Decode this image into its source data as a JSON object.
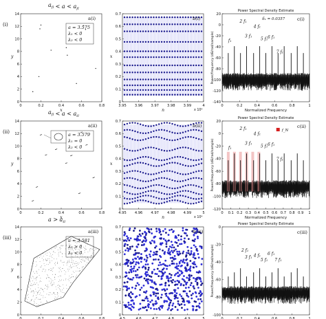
{
  "rows": [
    {
      "label": "(i)",
      "condition": {
        "pre": "a",
        "sub1": "fl",
        "mid": " < a < a",
        "sub2": "fl"
      },
      "attractor": {
        "panel": "a(i)",
        "legend": [
          "a = 3.575",
          "λ₁ < 0",
          "λ₂ < 0"
        ],
        "x_ticks": [
          "0",
          "0.2",
          "0.4",
          "0.6",
          "0.8"
        ],
        "y_ticks": [
          "0",
          "2",
          "4",
          "6",
          "8",
          "10",
          "12",
          "14"
        ],
        "xlabel": "x",
        "ylabel": "y"
      },
      "timeseries": {
        "panel": "b(i)",
        "x_ticks": [
          "3.95",
          "3.96",
          "3.97",
          "3.98",
          "3.99",
          "4"
        ],
        "y_ticks": [
          "0",
          "0.1",
          "0.2",
          "0.3",
          "0.4",
          "0.5",
          "0.6",
          "0.7"
        ],
        "xlabel": "n",
        "ylabel": "x",
        "exponent": "x 10⁴"
      },
      "psd": {
        "panel": "c(i)",
        "title": "Power Spectral Density Estimate",
        "delta": "δ₁ = 0.0357",
        "x_ticks": [
          "0",
          "0.2",
          "0.4",
          "0.6",
          "0.8",
          "1"
        ],
        "y_ticks": [
          "-140",
          "-120",
          "-100",
          "-80",
          "-60",
          "-40",
          "-20",
          "0",
          "20"
        ],
        "xlabel": "Normalized Frequency",
        "ylabel": "Power/frequency (dB/rad/sample)",
        "peak_labels": [
          "f₁",
          "2 f₁",
          "3 f₁",
          "4 f₁",
          "5 f₁",
          "6 f₁",
          "7 f₁"
        ]
      }
    },
    {
      "label": "(ii)",
      "condition": {
        "pre": "a",
        "sub1": "fl",
        "mid": " < a < a",
        "sub2": "tl"
      },
      "attractor": {
        "panel": "a(ii)",
        "legend": [
          "a = 3.579",
          "λ₁ = 0",
          "λ₂ < 0"
        ],
        "x_ticks": [
          "0",
          "0.2",
          "0.4",
          "0.6",
          "0.8"
        ],
        "y_ticks": [
          "0",
          "2",
          "4",
          "6",
          "8",
          "10",
          "12",
          "14"
        ],
        "xlabel": "x",
        "ylabel": "y"
      },
      "timeseries": {
        "panel": "b(ii)",
        "x_ticks": [
          "4.95",
          "4.96",
          "4.97",
          "4.98",
          "4.99",
          "5"
        ],
        "y_ticks": [
          "0",
          "0.1",
          "0.2",
          "0.3",
          "0.4",
          "0.5",
          "0.6",
          "0.7"
        ],
        "xlabel": "n",
        "ylabel": "x",
        "exponent": "x 10⁴"
      },
      "psd": {
        "panel": "c(ii)",
        "title": "Power Spectral Density Estimate",
        "legend": "f_N",
        "x_ticks": [
          "0",
          "0.1",
          "0.2",
          "0.3",
          "0.4",
          "0.5",
          "0.6",
          "0.7",
          "0.8",
          "0.9",
          "1"
        ],
        "y_ticks": [
          "-120",
          "-100",
          "-80",
          "-60",
          "-40",
          "-20",
          "0",
          "20"
        ],
        "xlabel": "Normalized Frequency",
        "ylabel": "Power/frequency (dB/rad/sample)",
        "peak_labels": [
          "f₁",
          "2 f₁",
          "3 f₁",
          "4 f₁",
          "5 f₁",
          "6 f₁",
          "7 f₁"
        ]
      }
    },
    {
      "label": "(iii)",
      "condition": {
        "pre": "a > a",
        "sub1": "tl",
        "mid": "",
        "sub2": ""
      },
      "attractor": {
        "panel": "a(iii)",
        "legend": [
          "a = 3.581",
          "λ₁ > 0",
          "λ₂ < 0"
        ],
        "x_ticks": [
          "0",
          "0.2",
          "0.4",
          "0.6",
          "0.8"
        ],
        "y_ticks": [
          "0",
          "2",
          "4",
          "6",
          "8",
          "10",
          "12",
          "14"
        ],
        "xlabel": "x",
        "ylabel": "y"
      },
      "timeseries": {
        "panel": "b(iii)",
        "x_ticks": [
          "4.5",
          "4.6",
          "4.7",
          "4.8",
          "4.9",
          "5"
        ],
        "y_ticks": [
          "0",
          "0.1",
          "0.2",
          "0.3",
          "0.4",
          "0.5",
          "0.6",
          "0.7"
        ],
        "xlabel": "n",
        "ylabel": "x",
        "exponent": "x 10⁴"
      },
      "psd": {
        "panel": "c(iii)",
        "title": "Power Spectral Density Estimate",
        "x_ticks": [
          "0",
          "0.2",
          "0.4",
          "0.6",
          "0.8",
          "1"
        ],
        "y_ticks": [
          "-100",
          "-80",
          "-60",
          "-40",
          "-20",
          "0"
        ],
        "xlabel": "Normalized Frequency",
        "ylabel": "Power/frequency (dB/rad/sample)",
        "peak_labels": [
          "2 f₁",
          "3 f₁",
          "4 f₁",
          "5 f₁",
          "6 f₁",
          "7 f₁"
        ]
      }
    }
  ],
  "colors": {
    "series": "#1a1a8c",
    "series_fill": "#2e2ed6",
    "psd": "#111111",
    "highlight": "#e88a8a",
    "marker": "#d62020"
  }
}
